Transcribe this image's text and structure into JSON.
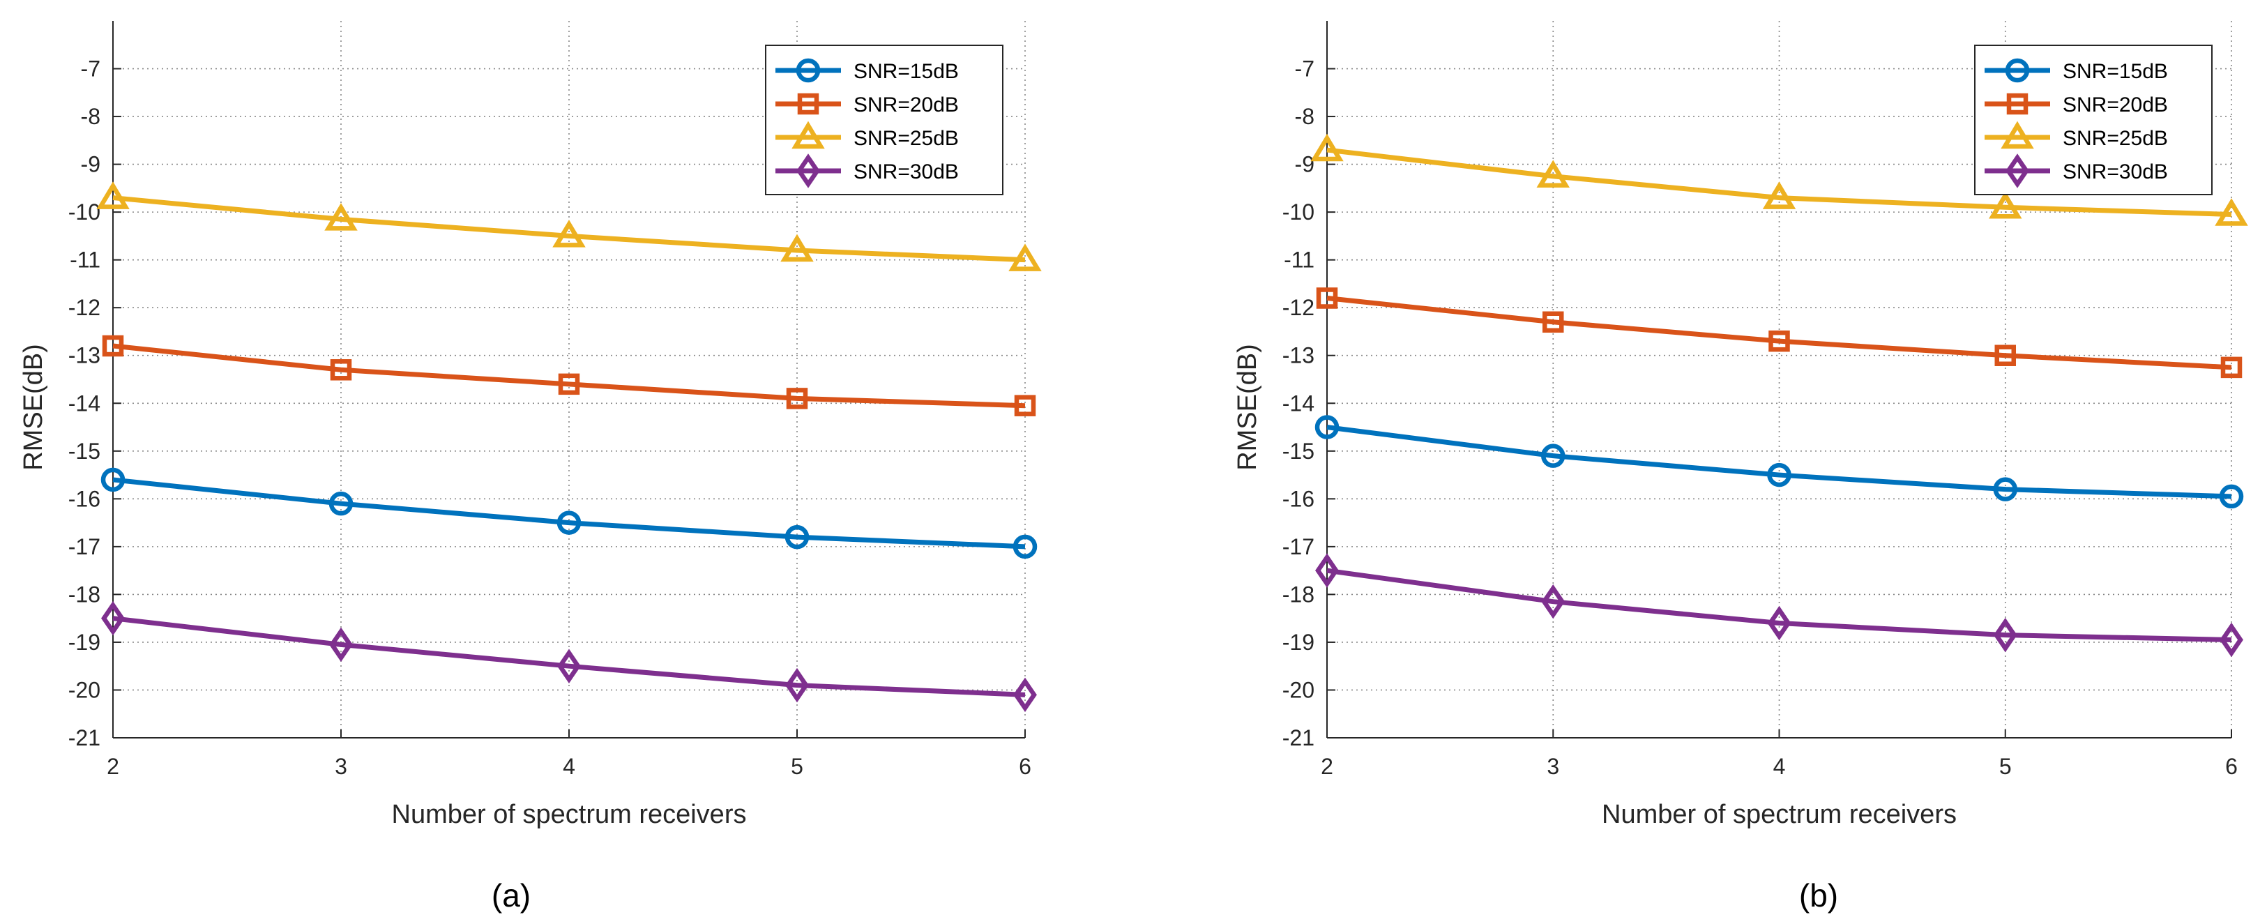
{
  "chart_data": [
    {
      "type": "line",
      "caption": "(a)",
      "xlabel": "Number of spectrum receivers",
      "ylabel": "RMSE(dB)",
      "x": [
        2,
        3,
        4,
        5,
        6
      ],
      "xlim": [
        2,
        6
      ],
      "ylim": [
        -21,
        -6
      ],
      "xticks": [
        "2",
        "3",
        "4",
        "5",
        "6"
      ],
      "yticks": [
        "-7",
        "-8",
        "-9",
        "-10",
        "-11",
        "-12",
        "-13",
        "-14",
        "-15",
        "-16",
        "-17",
        "-18",
        "-19",
        "-20",
        "-21"
      ],
      "grid": true,
      "legend_position": "top-right",
      "series": [
        {
          "name": "SNR=15dB",
          "color": "#0072BD",
          "marker": "circle",
          "values": [
            -15.6,
            -16.1,
            -16.5,
            -16.8,
            -17.0
          ]
        },
        {
          "name": "SNR=20dB",
          "color": "#D95319",
          "marker": "square",
          "values": [
            -12.8,
            -13.3,
            -13.6,
            -13.9,
            -14.05
          ]
        },
        {
          "name": "SNR=25dB",
          "color": "#EDB120",
          "marker": "triangle",
          "values": [
            -9.7,
            -10.15,
            -10.5,
            -10.8,
            -11.0
          ]
        },
        {
          "name": "SNR=30dB",
          "color": "#7E2F8E",
          "marker": "diamond",
          "values": [
            -18.5,
            -19.05,
            -19.5,
            -19.9,
            -20.1
          ]
        }
      ]
    },
    {
      "type": "line",
      "caption": "(b)",
      "xlabel": "Number of spectrum receivers",
      "ylabel": "RMSE(dB)",
      "x": [
        2,
        3,
        4,
        5,
        6
      ],
      "xlim": [
        2,
        6
      ],
      "ylim": [
        -21,
        -6
      ],
      "xticks": [
        "2",
        "3",
        "4",
        "5",
        "6"
      ],
      "yticks": [
        "-7",
        "-8",
        "-9",
        "-10",
        "-11",
        "-12",
        "-13",
        "-14",
        "-15",
        "-16",
        "-17",
        "-18",
        "-19",
        "-20",
        "-21"
      ],
      "grid": true,
      "legend_position": "top-right",
      "series": [
        {
          "name": "SNR=15dB",
          "color": "#0072BD",
          "marker": "circle",
          "values": [
            -14.5,
            -15.1,
            -15.5,
            -15.8,
            -15.95
          ]
        },
        {
          "name": "SNR=20dB",
          "color": "#D95319",
          "marker": "square",
          "values": [
            -11.8,
            -12.3,
            -12.7,
            -13.0,
            -13.25
          ]
        },
        {
          "name": "SNR=25dB",
          "color": "#EDB120",
          "marker": "triangle",
          "values": [
            -8.7,
            -9.25,
            -9.7,
            -9.9,
            -10.05
          ]
        },
        {
          "name": "SNR=30dB",
          "color": "#7E2F8E",
          "marker": "diamond",
          "values": [
            -17.5,
            -18.15,
            -18.6,
            -18.85,
            -18.95
          ]
        }
      ]
    }
  ]
}
